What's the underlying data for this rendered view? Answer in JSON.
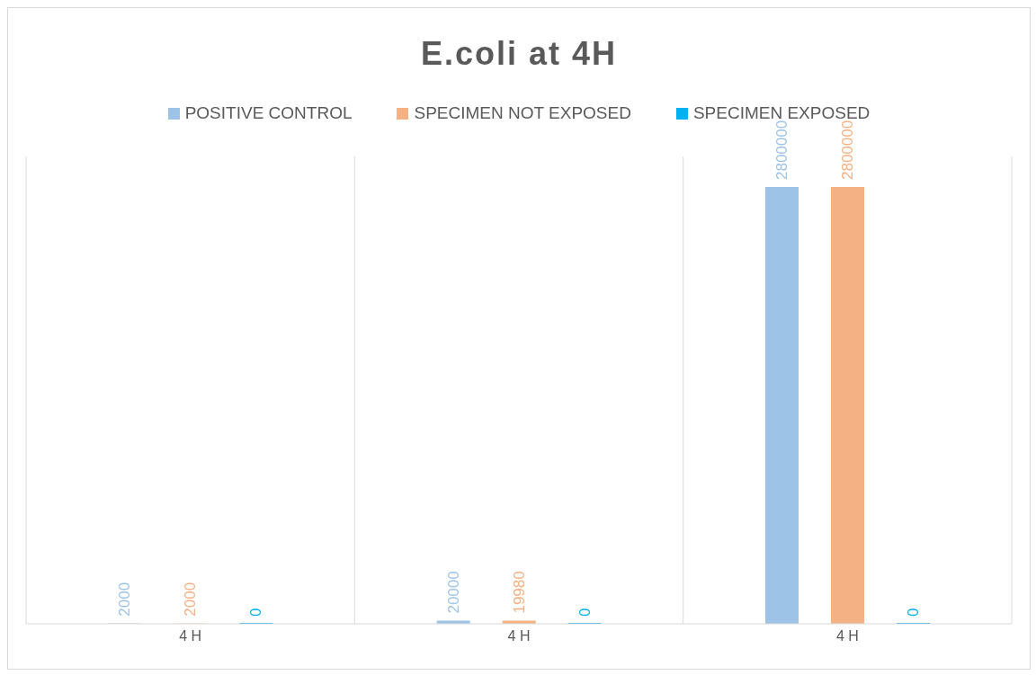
{
  "chart_data": {
    "type": "bar",
    "title": "E.coli at 4H",
    "categories": [
      "4 H",
      "4 H",
      "4 H"
    ],
    "series": [
      {
        "name": "POSITIVE CONTROL",
        "color": "#9dc3e6",
        "values": [
          2000,
          20000,
          2800000
        ]
      },
      {
        "name": "SPECIMEN NOT EXPOSED",
        "color": "#f4b183",
        "values": [
          2000,
          19980,
          2800000
        ]
      },
      {
        "name": "SPECIMEN EXPOSED",
        "color": "#00b0f0",
        "values": [
          0,
          0,
          0
        ]
      }
    ],
    "data_labels": true,
    "grid": "x",
    "legend": "top"
  }
}
